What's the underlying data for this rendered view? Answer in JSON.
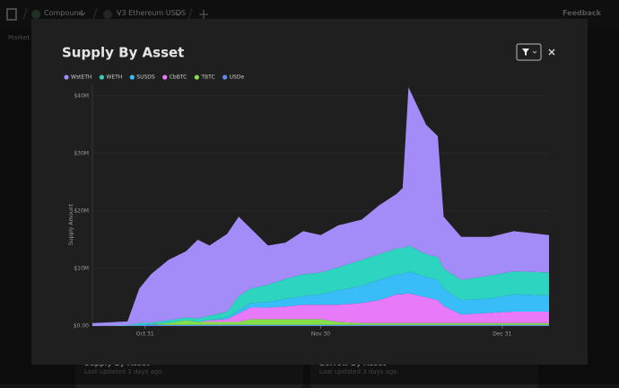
{
  "nav": {
    "project": "Compound",
    "market": "V3 Ethereum USDS",
    "feedback": "Feedback",
    "subnav": "Market"
  },
  "cards": [
    {
      "title": "Supply By Asset",
      "updated": "Last updated 3 days ago."
    },
    {
      "title": "Borrow By Asset",
      "updated": "Last updated 3 days ago."
    }
  ],
  "chart_data": {
    "type": "stacked-area",
    "title": "Supply By Asset",
    "y_label": "Supply Amount",
    "x": [
      "Oct 22",
      "Oct 28",
      "Oct 30",
      "Nov 1",
      "Nov 4",
      "Nov 7",
      "Nov 9",
      "Nov 11",
      "Nov 14",
      "Nov 16",
      "Nov 18",
      "Nov 21",
      "Nov 24",
      "Nov 27",
      "Nov 30",
      "Dec 3",
      "Dec 7",
      "Dec 10",
      "Dec 13",
      "Dec 14",
      "Dec 15",
      "Dec 18",
      "Dec 20",
      "Dec 21",
      "Dec 24",
      "Dec 29",
      "Jan 2",
      "Jan 8"
    ],
    "xlim": [
      "Oct 22",
      "Jan 8"
    ],
    "xticks": [
      "Oct 31",
      "Nov 30",
      "Dec 31"
    ],
    "ylim": [
      0,
      42
    ],
    "yticks": [
      {
        "value": 0,
        "label": "$0.00"
      },
      {
        "value": 10,
        "label": "$10M"
      },
      {
        "value": 20,
        "label": "$20M"
      },
      {
        "value": 30,
        "label": "$30M"
      },
      {
        "value": 40,
        "label": "$40M"
      }
    ],
    "grid": true,
    "series": [
      {
        "name": "WstETH",
        "color": "#a48cf8",
        "values": [
          0.5,
          0.7,
          6.0,
          8.4,
          10.5,
          11.5,
          13.7,
          12.2,
          13.5,
          13.8,
          10.5,
          6.8,
          6.3,
          7.5,
          6.5,
          7.3,
          7.0,
          8.5,
          9.5,
          10.5,
          27.5,
          22.5,
          21.0,
          9.0,
          7.5,
          6.7,
          7.0,
          6.5
        ]
      },
      {
        "name": "WETH",
        "color": "#2dd4bf",
        "values": [
          0,
          0.1,
          0.3,
          0.3,
          0.5,
          0.5,
          0.6,
          0.8,
          1.0,
          2.5,
          2.5,
          3.0,
          3.5,
          3.8,
          3.8,
          4.0,
          4.5,
          4.5,
          4.5,
          4.5,
          4.5,
          4.0,
          4.0,
          3.5,
          3.5,
          4.0,
          4.0,
          4.0
        ]
      },
      {
        "name": "SUSDS",
        "color": "#38bdf8",
        "values": [
          0,
          0,
          0,
          0,
          0,
          0,
          0,
          0,
          0.3,
          0.5,
          0.8,
          1.0,
          1.3,
          1.5,
          1.8,
          2.5,
          3.0,
          3.5,
          3.5,
          3.5,
          3.8,
          3.5,
          3.5,
          3.0,
          2.5,
          2.5,
          3.0,
          2.8
        ]
      },
      {
        "name": "CbBTC",
        "color": "#e879f9",
        "values": [
          0,
          0,
          0,
          0,
          0,
          0,
          0,
          0.3,
          0.5,
          1.5,
          2.0,
          2.0,
          2.2,
          2.5,
          2.5,
          3.0,
          3.5,
          4.0,
          5.0,
          5.0,
          5.2,
          4.5,
          4.0,
          3.0,
          1.5,
          1.8,
          2.0,
          2.0
        ]
      },
      {
        "name": "TBTC",
        "color": "#84e04a",
        "values": [
          0,
          0,
          0,
          0,
          0.3,
          0.8,
          0.5,
          0.5,
          0.5,
          0.5,
          1.0,
          1.0,
          1.0,
          1.0,
          1.0,
          0.5,
          0.3,
          0.3,
          0.3,
          0.3,
          0.3,
          0.3,
          0.3,
          0.3,
          0.3,
          0.3,
          0.3,
          0.3
        ]
      },
      {
        "name": "USDe",
        "color": "#5b8def",
        "values": [
          0,
          0,
          0.2,
          0.3,
          0.2,
          0.2,
          0.2,
          0.2,
          0.2,
          0.2,
          0.2,
          0.2,
          0.2,
          0.2,
          0.2,
          0.2,
          0.2,
          0.2,
          0.2,
          0.2,
          0.2,
          0.2,
          0.2,
          0.2,
          0.2,
          0.2,
          0.2,
          0.2
        ]
      }
    ]
  }
}
